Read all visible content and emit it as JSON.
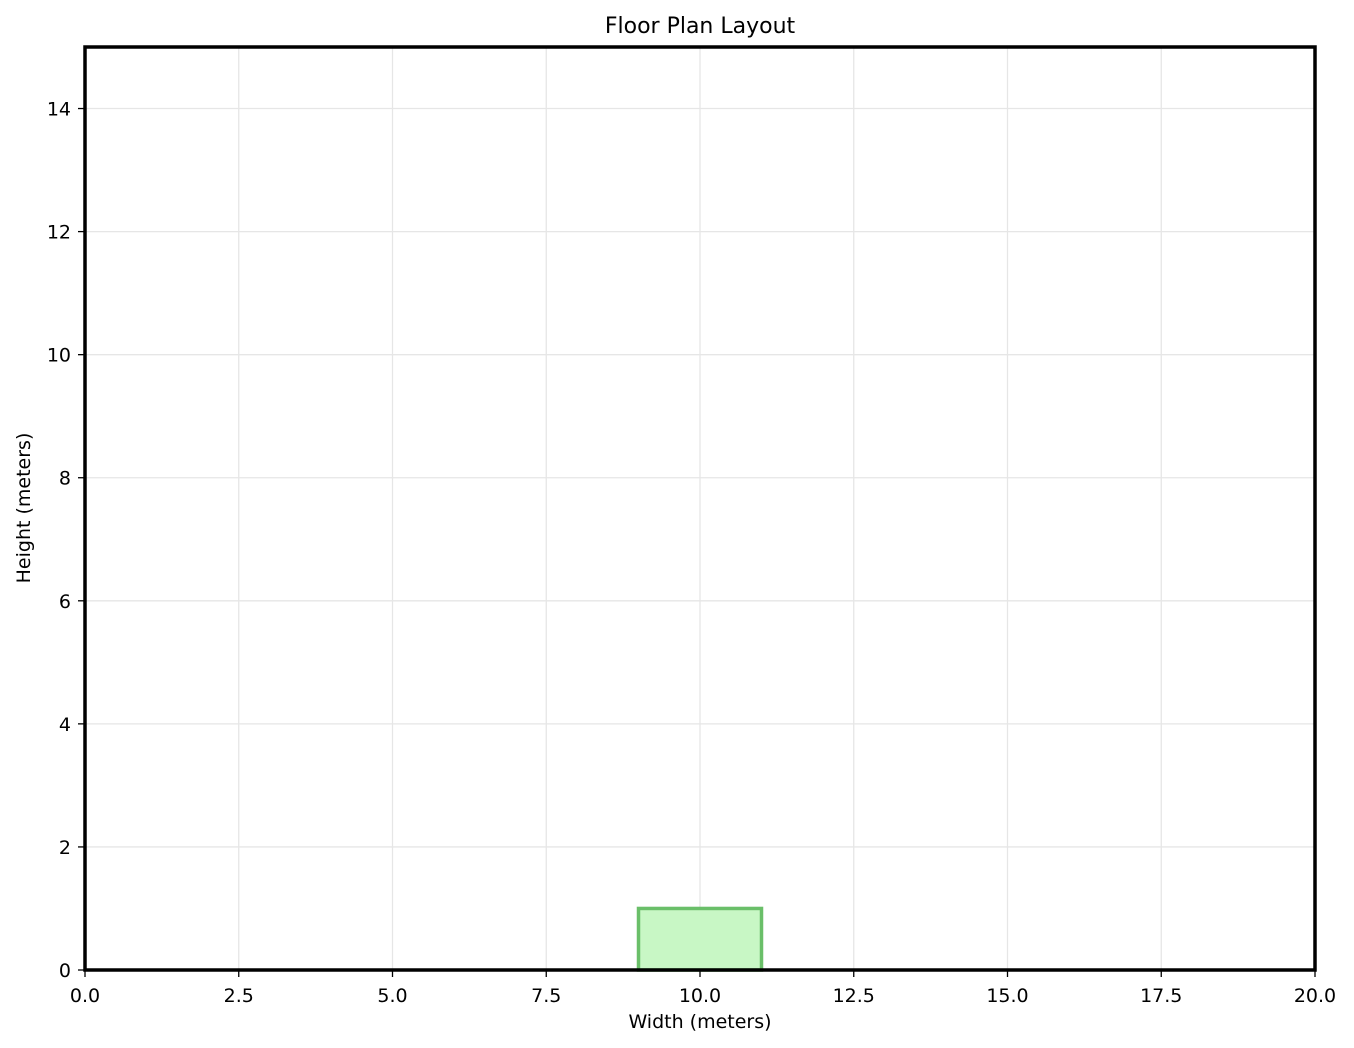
{
  "chart_data": {
    "type": "rectangle-plan",
    "title": "Floor Plan Layout",
    "xlabel": "Width (meters)",
    "ylabel": "Height (meters)",
    "xlim": [
      0,
      20
    ],
    "ylim": [
      0,
      15
    ],
    "xticks": [
      0.0,
      2.5,
      5.0,
      7.5,
      10.0,
      12.5,
      15.0,
      17.5,
      20.0
    ],
    "xtick_labels": [
      "0.0",
      "2.5",
      "5.0",
      "7.5",
      "10.0",
      "12.5",
      "15.0",
      "17.5",
      "20.0"
    ],
    "yticks": [
      0,
      2,
      4,
      6,
      8,
      10,
      12,
      14
    ],
    "ytick_labels": [
      "0",
      "2",
      "4",
      "6",
      "8",
      "10",
      "12",
      "14"
    ],
    "grid": true,
    "rooms": [
      {
        "x": 9,
        "y": 0,
        "width": 2,
        "height": 1,
        "fill": "#c8f7c5",
        "stroke": "#6abf69"
      }
    ],
    "colors": {
      "grid": "#e6e6e6",
      "frame": "#000000"
    }
  }
}
